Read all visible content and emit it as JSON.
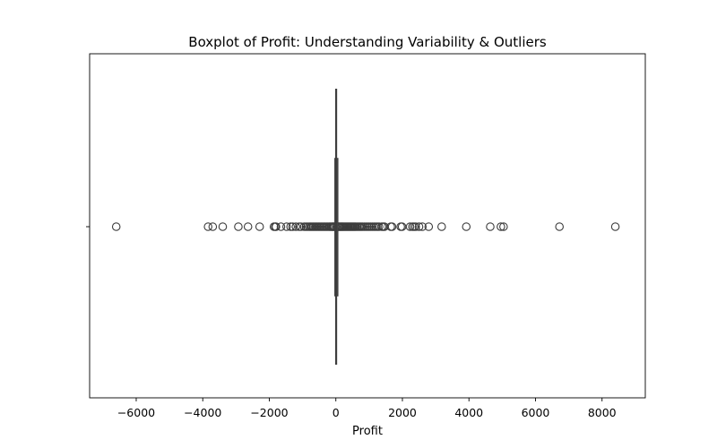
{
  "chart_data": {
    "type": "box",
    "title": "Boxplot of Profit: Understanding Variability & Outliers",
    "xlabel": "Profit",
    "ylabel": "",
    "orientation": "horizontal",
    "xlim": [
      -7400,
      9300
    ],
    "xticks": [
      -6000,
      -4000,
      -2000,
      0,
      2000,
      4000,
      6000,
      8000
    ],
    "xtick_labels": [
      "−6000",
      "−4000",
      "−2000",
      "0",
      "2000",
      "4000",
      "6000",
      "8000"
    ],
    "grid": false,
    "legend": "none",
    "colors": {
      "stroke": "#3d3d3d",
      "frame": "#000000",
      "background": "#ffffff"
    },
    "box": {
      "whisker_low": -39,
      "q1": 2,
      "median": 9,
      "q3": 29,
      "whisker_high": 70
    },
    "outliers": [
      -6600,
      -3840,
      -3700,
      -3400,
      -2930,
      -2640,
      -2290,
      -1860,
      -1820,
      -1800,
      -1650,
      -1480,
      -1360,
      -1300,
      -1200,
      -1100,
      -1050,
      -950,
      -900,
      -850,
      -800,
      -760,
      -720,
      -680,
      -640,
      -600,
      -560,
      -520,
      -480,
      -440,
      -400,
      -360,
      -320,
      -280,
      -240,
      -200,
      -170,
      -140,
      -110,
      -90,
      -70,
      -55,
      80,
      100,
      120,
      150,
      180,
      210,
      240,
      270,
      300,
      330,
      360,
      390,
      420,
      450,
      480,
      510,
      540,
      570,
      600,
      640,
      680,
      720,
      760,
      800,
      850,
      900,
      950,
      1000,
      1050,
      1100,
      1150,
      1200,
      1250,
      1300,
      1380,
      1420,
      1460,
      1650,
      1690,
      1950,
      1990,
      2230,
      2300,
      2350,
      2400,
      2500,
      2600,
      2790,
      3180,
      3920,
      4640,
      4960,
      5040,
      6720,
      8400
    ]
  }
}
